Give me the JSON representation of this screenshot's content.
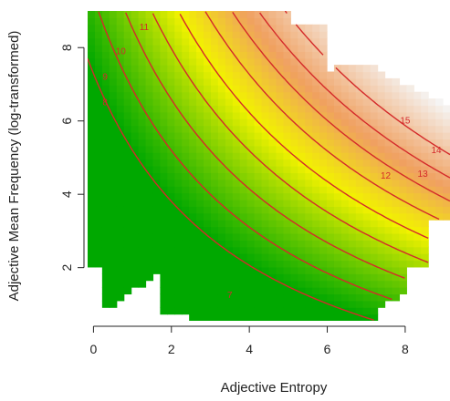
{
  "chart_data": {
    "type": "heatmap",
    "title": "",
    "xlabel": "Adjective Entropy",
    "ylabel": "Adjective Mean Frequency (log-transformed)",
    "xlim": [
      -0.15,
      9.15
    ],
    "ylim": [
      0.55,
      9.0
    ],
    "x_ticks": [
      0,
      2,
      4,
      6,
      8
    ],
    "y_ticks": [
      2,
      4,
      6,
      8
    ],
    "grid": false,
    "legend": "none",
    "surface_palette": [
      "#00a800",
      "#f2f200",
      "#f0a060",
      "#f5f5f5"
    ],
    "contour_color": "#d42a2a",
    "contour_levels": [
      {
        "level": 7,
        "label": "7",
        "label_at": [
          3.5,
          1.25
        ]
      },
      {
        "level": 8,
        "label": "8",
        "label_at": [
          0.3,
          6.5
        ]
      },
      {
        "level": 9,
        "label": "9",
        "label_at": [
          0.3,
          7.2
        ]
      },
      {
        "level": 10,
        "label": "10",
        "label_at": [
          0.7,
          7.9
        ]
      },
      {
        "level": 11,
        "label": "11",
        "label_at": [
          1.3,
          8.55
        ]
      },
      {
        "level": 12,
        "label": "12",
        "label_at": [
          7.5,
          4.5
        ]
      },
      {
        "level": 13,
        "label": "13",
        "label_at": [
          8.45,
          4.55
        ]
      },
      {
        "level": 14,
        "label": "14",
        "label_at": [
          8.8,
          5.2
        ]
      },
      {
        "level": 15,
        "label": "15",
        "label_at": [
          8.0,
          6.0
        ]
      }
    ]
  }
}
